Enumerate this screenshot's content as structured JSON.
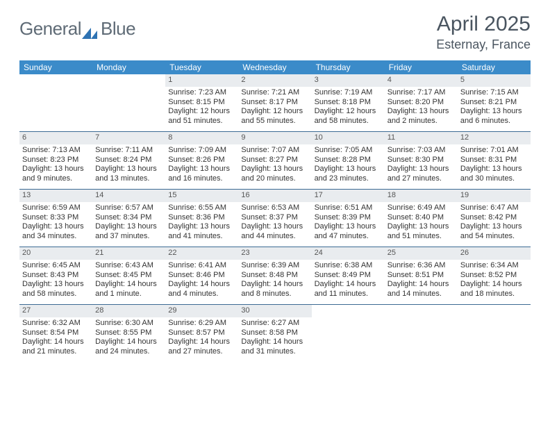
{
  "logo": {
    "word1": "General",
    "word2": "Blue"
  },
  "title": "April 2025",
  "location": "Esternay, France",
  "colors": {
    "header_bg": "#3b8bc9",
    "header_text": "#ffffff",
    "week_border": "#3b6a93",
    "daynum_bg": "#e9ecef",
    "title_color": "#4a5560",
    "logo_color": "#5f6b76",
    "logo_accent": "#2f73b3"
  },
  "day_names": [
    "Sunday",
    "Monday",
    "Tuesday",
    "Wednesday",
    "Thursday",
    "Friday",
    "Saturday"
  ],
  "weeks": [
    [
      {
        "n": "",
        "empty": true
      },
      {
        "n": "",
        "empty": true
      },
      {
        "n": "1",
        "sr": "7:23 AM",
        "ss": "8:15 PM",
        "dl": "12 hours and 51 minutes."
      },
      {
        "n": "2",
        "sr": "7:21 AM",
        "ss": "8:17 PM",
        "dl": "12 hours and 55 minutes."
      },
      {
        "n": "3",
        "sr": "7:19 AM",
        "ss": "8:18 PM",
        "dl": "12 hours and 58 minutes."
      },
      {
        "n": "4",
        "sr": "7:17 AM",
        "ss": "8:20 PM",
        "dl": "13 hours and 2 minutes."
      },
      {
        "n": "5",
        "sr": "7:15 AM",
        "ss": "8:21 PM",
        "dl": "13 hours and 6 minutes."
      }
    ],
    [
      {
        "n": "6",
        "sr": "7:13 AM",
        "ss": "8:23 PM",
        "dl": "13 hours and 9 minutes."
      },
      {
        "n": "7",
        "sr": "7:11 AM",
        "ss": "8:24 PM",
        "dl": "13 hours and 13 minutes."
      },
      {
        "n": "8",
        "sr": "7:09 AM",
        "ss": "8:26 PM",
        "dl": "13 hours and 16 minutes."
      },
      {
        "n": "9",
        "sr": "7:07 AM",
        "ss": "8:27 PM",
        "dl": "13 hours and 20 minutes."
      },
      {
        "n": "10",
        "sr": "7:05 AM",
        "ss": "8:28 PM",
        "dl": "13 hours and 23 minutes."
      },
      {
        "n": "11",
        "sr": "7:03 AM",
        "ss": "8:30 PM",
        "dl": "13 hours and 27 minutes."
      },
      {
        "n": "12",
        "sr": "7:01 AM",
        "ss": "8:31 PM",
        "dl": "13 hours and 30 minutes."
      }
    ],
    [
      {
        "n": "13",
        "sr": "6:59 AM",
        "ss": "8:33 PM",
        "dl": "13 hours and 34 minutes."
      },
      {
        "n": "14",
        "sr": "6:57 AM",
        "ss": "8:34 PM",
        "dl": "13 hours and 37 minutes."
      },
      {
        "n": "15",
        "sr": "6:55 AM",
        "ss": "8:36 PM",
        "dl": "13 hours and 41 minutes."
      },
      {
        "n": "16",
        "sr": "6:53 AM",
        "ss": "8:37 PM",
        "dl": "13 hours and 44 minutes."
      },
      {
        "n": "17",
        "sr": "6:51 AM",
        "ss": "8:39 PM",
        "dl": "13 hours and 47 minutes."
      },
      {
        "n": "18",
        "sr": "6:49 AM",
        "ss": "8:40 PM",
        "dl": "13 hours and 51 minutes."
      },
      {
        "n": "19",
        "sr": "6:47 AM",
        "ss": "8:42 PM",
        "dl": "13 hours and 54 minutes."
      }
    ],
    [
      {
        "n": "20",
        "sr": "6:45 AM",
        "ss": "8:43 PM",
        "dl": "13 hours and 58 minutes."
      },
      {
        "n": "21",
        "sr": "6:43 AM",
        "ss": "8:45 PM",
        "dl": "14 hours and 1 minute."
      },
      {
        "n": "22",
        "sr": "6:41 AM",
        "ss": "8:46 PM",
        "dl": "14 hours and 4 minutes."
      },
      {
        "n": "23",
        "sr": "6:39 AM",
        "ss": "8:48 PM",
        "dl": "14 hours and 8 minutes."
      },
      {
        "n": "24",
        "sr": "6:38 AM",
        "ss": "8:49 PM",
        "dl": "14 hours and 11 minutes."
      },
      {
        "n": "25",
        "sr": "6:36 AM",
        "ss": "8:51 PM",
        "dl": "14 hours and 14 minutes."
      },
      {
        "n": "26",
        "sr": "6:34 AM",
        "ss": "8:52 PM",
        "dl": "14 hours and 18 minutes."
      }
    ],
    [
      {
        "n": "27",
        "sr": "6:32 AM",
        "ss": "8:54 PM",
        "dl": "14 hours and 21 minutes."
      },
      {
        "n": "28",
        "sr": "6:30 AM",
        "ss": "8:55 PM",
        "dl": "14 hours and 24 minutes."
      },
      {
        "n": "29",
        "sr": "6:29 AM",
        "ss": "8:57 PM",
        "dl": "14 hours and 27 minutes."
      },
      {
        "n": "30",
        "sr": "6:27 AM",
        "ss": "8:58 PM",
        "dl": "14 hours and 31 minutes."
      },
      {
        "n": "",
        "empty": true
      },
      {
        "n": "",
        "empty": true
      },
      {
        "n": "",
        "empty": true
      }
    ]
  ],
  "labels": {
    "sunrise": "Sunrise: ",
    "sunset": "Sunset: ",
    "daylight": "Daylight: "
  }
}
